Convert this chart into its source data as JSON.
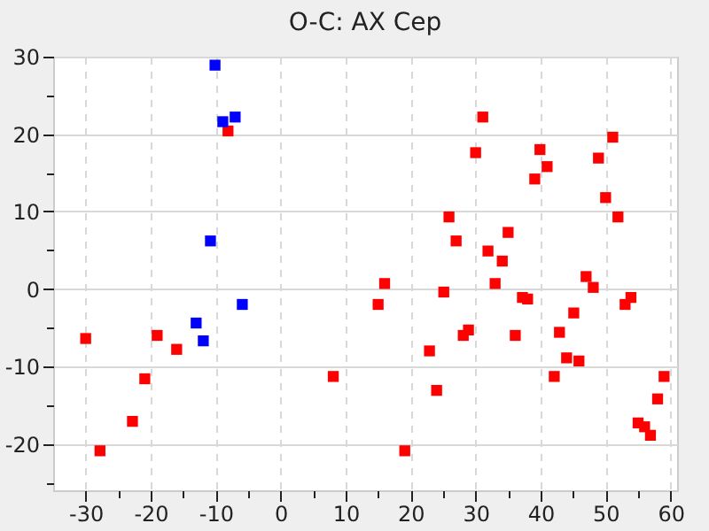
{
  "chart_data": {
    "type": "scatter",
    "title": "O-C: AX Cep",
    "marker": "square",
    "grid": true,
    "legend": false,
    "xlim": [
      -35,
      61
    ],
    "ylim": [
      -26,
      30
    ],
    "xticks": [
      -30,
      {
        "value": -25,
        "label": null
      },
      -20,
      {
        "value": -15,
        "label": null
      },
      -10,
      {
        "value": -5,
        "label": null
      },
      0,
      {
        "value": 5,
        "label": null
      },
      10,
      {
        "value": 15,
        "label": null
      },
      20,
      {
        "value": 25,
        "label": null
      },
      30,
      {
        "value": 35,
        "label": null
      },
      40,
      {
        "value": 45,
        "label": null
      },
      50,
      {
        "value": 55,
        "label": null
      },
      60
    ],
    "yticks": [
      {
        "value": -25,
        "label": null
      },
      -20,
      {
        "value": -15,
        "label": null
      },
      -10,
      {
        "value": -5,
        "label": null
      },
      0,
      {
        "value": 5,
        "label": null
      },
      10,
      {
        "value": 15,
        "label": null
      },
      20,
      {
        "value": 25,
        "label": null
      },
      30
    ],
    "series": [
      {
        "color": "#ff0000",
        "x": [
          -8.1,
          -30,
          -27.8,
          -22.8,
          -20.9,
          -19,
          -16,
          8.1,
          31.1,
          30,
          39.9,
          41,
          39.1,
          51.1,
          48.9,
          50,
          51.9,
          25.9,
          27,
          35,
          31.9,
          34.1,
          16,
          15,
          25.1,
          33,
          47,
          48.1,
          37.2,
          38,
          53,
          53.9,
          45.1,
          28.1,
          28.9,
          36.1,
          42.9,
          22.9,
          44,
          45.9,
          42.1,
          59,
          24,
          58,
          55,
          56,
          56.9,
          19.1
        ],
        "values": [
          20.4,
          -6.4,
          -20.9,
          -17.1,
          -11.6,
          -6,
          -7.8,
          -11.3,
          22.2,
          17.6,
          18,
          15.8,
          14.2,
          19.6,
          16.9,
          11.8,
          9.3,
          9.3,
          6.2,
          7.3,
          4.9,
          3.6,
          0.7,
          -2,
          -0.4,
          0.7,
          1.6,
          0.2,
          -1.1,
          -1.3,
          -2,
          -1.1,
          -3.1,
          -6,
          -5.3,
          -6,
          -5.6,
          -8,
          -8.9,
          -9.3,
          -11.3,
          -11.3,
          -13.1,
          -14.2,
          -17.3,
          -17.8,
          -18.9,
          -20.9
        ]
      },
      {
        "color": "#0000ff",
        "x": [
          -10.1,
          -8.9,
          -7,
          -10.8,
          -13,
          -11.9,
          -5.9
        ],
        "values": [
          28.9,
          21.6,
          22.2,
          6.2,
          -4.4,
          -6.7,
          -2
        ]
      }
    ]
  }
}
